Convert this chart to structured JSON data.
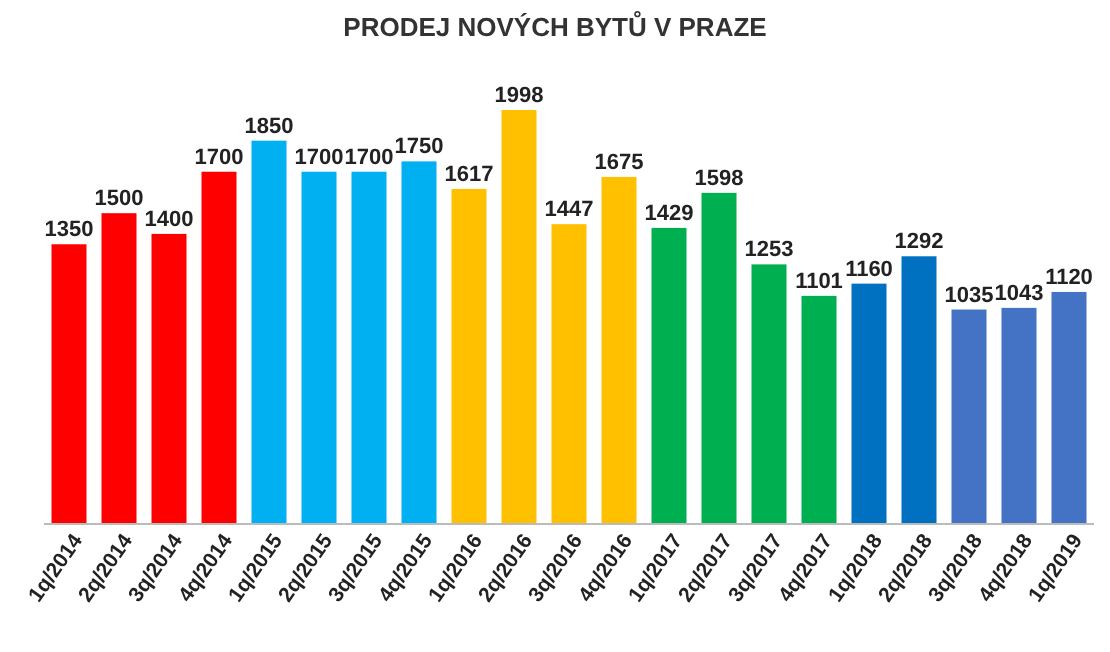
{
  "chart_data": {
    "type": "bar",
    "title": "PRODEJ NOVÝCH BYTŮ V PRAZE",
    "categories": [
      "1q/2014",
      "2q/2014",
      "3q/2014",
      "4q/2014",
      "1q/2015",
      "2q/2015",
      "3q/2015",
      "4q/2015",
      "1q/2016",
      "2q/2016",
      "3q/2016",
      "4q/2016",
      "1q/2017",
      "2q/2017",
      "3q/2017",
      "4q/2017",
      "1q/2018",
      "2q/2018",
      "3q/2018",
      "4q/2018",
      "1q/2019"
    ],
    "values": [
      1350,
      1500,
      1400,
      1700,
      1850,
      1700,
      1700,
      1750,
      1617,
      1998,
      1447,
      1675,
      1429,
      1598,
      1253,
      1101,
      1160,
      1292,
      1035,
      1043,
      1120
    ],
    "colors": [
      "#ff0000",
      "#ff0000",
      "#ff0000",
      "#ff0000",
      "#00b0f0",
      "#00b0f0",
      "#00b0f0",
      "#00b0f0",
      "#ffc000",
      "#ffc000",
      "#ffc000",
      "#ffc000",
      "#00b050",
      "#00b050",
      "#00b050",
      "#00b050",
      "#0070c0",
      "#0070c0",
      "#4472c4",
      "#4472c4",
      "#4472c4"
    ],
    "data_labels": true,
    "tick_labels": "x"
  }
}
